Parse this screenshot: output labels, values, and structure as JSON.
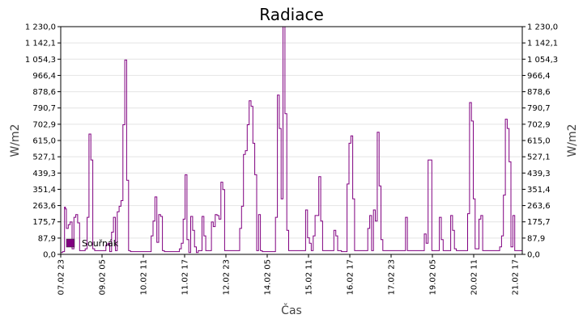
{
  "chart_data": {
    "type": "line",
    "title": "Radiace",
    "xlabel": "Čas",
    "ylabel": "W/m2",
    "ylim": [
      0,
      1230
    ],
    "y_ticks": [
      "0,0",
      "87,9",
      "175,7",
      "263,6",
      "351,4",
      "439,3",
      "527,1",
      "615,0",
      "702,9",
      "790,7",
      "878,6",
      "966,4",
      "1 054,3",
      "1 142,1",
      "1 230,0"
    ],
    "x_tick_labels": [
      "07.02 23",
      "09.02 05",
      "10.02 11",
      "11.02 17",
      "12.02 23",
      "14.02 05",
      "15.02 11",
      "16.02 17",
      "17.02 23",
      "19.02 05",
      "20.02 11",
      "21.02 17"
    ],
    "grid": true,
    "right_axis": true,
    "legend_position": "bottom-left",
    "series": [
      {
        "name": "Souřnák",
        "color": "#800080",
        "points": [
          [
            0.0,
            10
          ],
          [
            1.0,
            15
          ],
          [
            2.0,
            255
          ],
          [
            2.5,
            245
          ],
          [
            3.0,
            140
          ],
          [
            4.0,
            160
          ],
          [
            5.0,
            175
          ],
          [
            6.0,
            30
          ],
          [
            7.0,
            200
          ],
          [
            8.0,
            215
          ],
          [
            9.0,
            170
          ],
          [
            10.0,
            20
          ],
          [
            11.0,
            20
          ],
          [
            12.0,
            20
          ],
          [
            13.0,
            30
          ],
          [
            14.0,
            200
          ],
          [
            15.0,
            650
          ],
          [
            16.0,
            510
          ],
          [
            17.0,
            30
          ],
          [
            18.0,
            20
          ],
          [
            19.0,
            20
          ],
          [
            20.0,
            20
          ],
          [
            21.0,
            20
          ],
          [
            22.0,
            20
          ],
          [
            23.0,
            20
          ],
          [
            24.0,
            50
          ],
          [
            25.0,
            60
          ],
          [
            26.0,
            15
          ],
          [
            27.0,
            120
          ],
          [
            28.0,
            200
          ],
          [
            29.0,
            20
          ],
          [
            30.0,
            230
          ],
          [
            31.0,
            260
          ],
          [
            32.0,
            290
          ],
          [
            33.0,
            700
          ],
          [
            34.0,
            1050
          ],
          [
            35.0,
            400
          ],
          [
            36.0,
            20
          ],
          [
            37.0,
            15
          ],
          [
            38.0,
            15
          ],
          [
            39.0,
            15
          ],
          [
            40.0,
            15
          ],
          [
            41.0,
            15
          ],
          [
            42.0,
            15
          ],
          [
            43.0,
            15
          ],
          [
            44.0,
            15
          ],
          [
            45.0,
            15
          ],
          [
            46.0,
            15
          ],
          [
            47.0,
            15
          ],
          [
            48.0,
            100
          ],
          [
            49.0,
            180
          ],
          [
            50.0,
            310
          ],
          [
            51.0,
            65
          ],
          [
            52.0,
            215
          ],
          [
            53.0,
            205
          ],
          [
            54.0,
            20
          ],
          [
            55.0,
            15
          ],
          [
            56.0,
            15
          ],
          [
            57.0,
            15
          ],
          [
            58.0,
            15
          ],
          [
            59.0,
            15
          ],
          [
            60.0,
            15
          ],
          [
            61.0,
            15
          ],
          [
            62.0,
            15
          ],
          [
            63.0,
            30
          ],
          [
            64.0,
            60
          ],
          [
            65.0,
            190
          ],
          [
            66.0,
            430
          ],
          [
            67.0,
            80
          ],
          [
            68.0,
            10
          ],
          [
            69.0,
            205
          ],
          [
            70.0,
            130
          ],
          [
            71.0,
            40
          ],
          [
            72.0,
            10
          ],
          [
            73.0,
            20
          ],
          [
            74.0,
            20
          ],
          [
            75.0,
            205
          ],
          [
            76.0,
            100
          ],
          [
            77.0,
            20
          ],
          [
            78.0,
            20
          ],
          [
            79.0,
            20
          ],
          [
            80.0,
            175
          ],
          [
            81.0,
            150
          ],
          [
            82.0,
            215
          ],
          [
            83.0,
            210
          ],
          [
            84.0,
            190
          ],
          [
            85.0,
            390
          ],
          [
            86.0,
            350
          ],
          [
            87.0,
            20
          ],
          [
            88.0,
            20
          ],
          [
            89.0,
            20
          ],
          [
            90.0,
            20
          ],
          [
            91.0,
            20
          ],
          [
            92.0,
            20
          ],
          [
            93.0,
            20
          ],
          [
            94.0,
            20
          ],
          [
            95.0,
            140
          ],
          [
            96.0,
            260
          ],
          [
            97.0,
            540
          ],
          [
            98.0,
            560
          ],
          [
            99.0,
            700
          ],
          [
            100.0,
            830
          ],
          [
            101.0,
            800
          ],
          [
            102.0,
            600
          ],
          [
            103.0,
            430
          ],
          [
            104.0,
            20
          ],
          [
            105.0,
            215
          ],
          [
            106.0,
            20
          ],
          [
            107.0,
            15
          ],
          [
            108.0,
            15
          ],
          [
            109.0,
            15
          ],
          [
            110.0,
            15
          ],
          [
            111.0,
            15
          ],
          [
            112.0,
            15
          ],
          [
            113.0,
            15
          ],
          [
            114.0,
            200
          ],
          [
            115.0,
            860
          ],
          [
            116.0,
            680
          ],
          [
            117.0,
            300
          ],
          [
            118.0,
            1230
          ],
          [
            119.0,
            760
          ],
          [
            120.0,
            130
          ],
          [
            121.0,
            20
          ],
          [
            122.0,
            20
          ],
          [
            123.0,
            20
          ],
          [
            124.0,
            20
          ],
          [
            125.0,
            20
          ],
          [
            126.0,
            20
          ],
          [
            127.0,
            20
          ],
          [
            128.0,
            20
          ],
          [
            129.0,
            20
          ],
          [
            130.0,
            240
          ],
          [
            131.0,
            90
          ],
          [
            132.0,
            60
          ],
          [
            133.0,
            20
          ],
          [
            134.0,
            100
          ],
          [
            135.0,
            210
          ],
          [
            136.0,
            210
          ],
          [
            137.0,
            420
          ],
          [
            138.0,
            180
          ],
          [
            139.0,
            20
          ],
          [
            140.0,
            20
          ],
          [
            141.0,
            20
          ],
          [
            142.0,
            20
          ],
          [
            143.0,
            20
          ],
          [
            144.0,
            20
          ],
          [
            145.0,
            130
          ],
          [
            146.0,
            100
          ],
          [
            147.0,
            20
          ],
          [
            148.0,
            20
          ],
          [
            149.0,
            15
          ],
          [
            150.0,
            15
          ],
          [
            151.0,
            15
          ],
          [
            152.0,
            380
          ],
          [
            153.0,
            600
          ],
          [
            154.0,
            640
          ],
          [
            155.0,
            300
          ],
          [
            156.0,
            20
          ],
          [
            157.0,
            20
          ],
          [
            158.0,
            20
          ],
          [
            159.0,
            20
          ],
          [
            160.0,
            20
          ],
          [
            161.0,
            20
          ],
          [
            162.0,
            20
          ],
          [
            163.0,
            140
          ],
          [
            164.0,
            210
          ],
          [
            165.0,
            20
          ],
          [
            166.0,
            240
          ],
          [
            167.0,
            180
          ],
          [
            168.0,
            660
          ],
          [
            169.0,
            370
          ],
          [
            170.0,
            80
          ],
          [
            171.0,
            20
          ],
          [
            172.0,
            20
          ],
          [
            173.0,
            20
          ],
          [
            174.0,
            20
          ],
          [
            175.0,
            20
          ],
          [
            176.0,
            20
          ],
          [
            177.0,
            20
          ],
          [
            178.0,
            20
          ],
          [
            179.0,
            20
          ],
          [
            180.0,
            20
          ],
          [
            181.0,
            20
          ],
          [
            182.0,
            20
          ],
          [
            183.0,
            200
          ],
          [
            184.0,
            20
          ],
          [
            185.0,
            20
          ],
          [
            186.0,
            20
          ],
          [
            187.0,
            20
          ],
          [
            188.0,
            20
          ],
          [
            189.0,
            20
          ],
          [
            190.0,
            20
          ],
          [
            191.0,
            20
          ],
          [
            192.0,
            20
          ],
          [
            193.0,
            110
          ],
          [
            194.0,
            60
          ],
          [
            195.0,
            510
          ],
          [
            196.0,
            510
          ],
          [
            197.0,
            20
          ],
          [
            198.0,
            20
          ],
          [
            199.0,
            20
          ],
          [
            200.0,
            20
          ],
          [
            201.0,
            200
          ],
          [
            202.0,
            80
          ],
          [
            203.0,
            20
          ],
          [
            204.0,
            20
          ],
          [
            205.0,
            20
          ],
          [
            206.0,
            20
          ],
          [
            207.0,
            210
          ],
          [
            208.0,
            130
          ],
          [
            209.0,
            30
          ],
          [
            210.0,
            20
          ],
          [
            211.0,
            20
          ],
          [
            212.0,
            20
          ],
          [
            213.0,
            20
          ],
          [
            214.0,
            20
          ],
          [
            215.0,
            20
          ],
          [
            216.0,
            220
          ],
          [
            217.0,
            820
          ],
          [
            218.0,
            720
          ],
          [
            219.0,
            300
          ],
          [
            220.0,
            30
          ],
          [
            221.0,
            30
          ],
          [
            222.0,
            190
          ],
          [
            223.0,
            210
          ],
          [
            224.0,
            20
          ],
          [
            225.0,
            20
          ],
          [
            226.0,
            20
          ],
          [
            227.0,
            20
          ],
          [
            228.0,
            20
          ],
          [
            229.0,
            20
          ],
          [
            230.0,
            20
          ],
          [
            231.0,
            20
          ],
          [
            232.0,
            20
          ],
          [
            233.0,
            40
          ],
          [
            234.0,
            100
          ],
          [
            235.0,
            320
          ],
          [
            236.0,
            730
          ],
          [
            237.0,
            680
          ],
          [
            238.0,
            500
          ],
          [
            239.0,
            40
          ],
          [
            240.0,
            210
          ],
          [
            241.0,
            20
          ],
          [
            242.0,
            20
          ],
          [
            243.0,
            20
          ],
          [
            244.0,
            20
          ],
          [
            245.0,
            20
          ]
        ]
      }
    ]
  }
}
